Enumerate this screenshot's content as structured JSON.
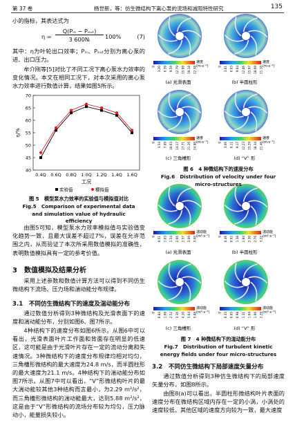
{
  "header": {
    "volume": "第 37 卷",
    "running_title": "杨世新，等：仿生微结构下离心泵的流场和减阻特性研究",
    "page_number": "135"
  },
  "left": {
    "p1": "小的指标，其表达式为",
    "equation": {
      "lhs": "η =",
      "numerator": "Q(Pᵢₙ − Pₒᵤₜ)",
      "denominator": "3 600Nᵢ",
      "suffix": "100%",
      "number": "(7)"
    },
    "p2": "其中：η为叶轮出口效率；Pᵢₙ、Pₒᵤₜ分别为离心泵的进、出口压力。",
    "p3": "牟介刚等[5]对比了不同工况下离心泵水力效率的变化情况。本文在相同工况下，对本次采用的离心泵水力效率进行数值计算，结果如图5所示。",
    "fig5_caption_cn": "图 5　模型泵水力效率的实验值与模拟值对比",
    "fig5_caption_en": "Fig.5　Comparison of experimental data and simulation value of hydraulic efficiency",
    "p4": "由图5可知，模型泵水力效率模拟值与实验值变化趋势一致，且最大误差不超过7%，误差在允许范围之内，从而验证了本次所采用数值模拟的准确性，表明数值模拟具有一定的参考价值。",
    "section3": "3　数值模拟及结果分析",
    "p5": "采用上述参数和数值计算方法可以得到不同仿生微结构下流场、压力场和湍动能分布规律。",
    "section31": "3.1　不同仿生微结构下的速度及湍动能分布",
    "p6": "通过数值分析得到3种微结构及光滑表面下的速度和湍动能分布，分别如图6、图7所示。",
    "p7": "4种结构下的速度分布如图6所示。从图6中可以看出，光滑表面叶片工作面和背面存在明显的低速区，这可能是由于光滑叶片存在一定的流动分离和失速情况。3种微结构下的速度分布规律均相对均匀，三角槽形微结构的最大速度为24.8 m/s，而半圆柱形的最大速度为21.1 m/s。4种结构下的湍动能分布如图7所示。从图7中可以看出，“V”形微结构叶片的最大湍动能较其他3种结构而言最小，为2.29 m²/s²，而三角槽形微结构的湍动能最大，达到5.88 m²/s²，这是由于“V”形微结构的流场分布较为均匀，压力脉动小，能量损失较小。"
  },
  "chart_data": {
    "type": "line",
    "x_label": "工况",
    "y_label": "η/%",
    "categories": [
      "0.4Q",
      "0.6Q",
      "0.8Q",
      "1.0Q",
      "1.2Q",
      "1.4Q",
      "1.6Q"
    ],
    "series": [
      {
        "name": "实验值",
        "color": "#000000",
        "marker": "square",
        "values": [
          45,
          56,
          63,
          65.5,
          64,
          62,
          55
        ]
      },
      {
        "name": "模拟值",
        "color": "#e02020",
        "marker": "circle",
        "values": [
          47,
          57,
          64,
          66.5,
          65,
          63,
          56
        ]
      }
    ],
    "ylim": [
      40,
      70
    ],
    "yticks": [
      40,
      45,
      50,
      55,
      60,
      65,
      70
    ]
  },
  "figure6": {
    "unit": "速度\n(m·s⁻¹)",
    "panels": [
      {
        "label": "(a) 光滑表面",
        "ticks": [
          "0",
          "3.20",
          "6.39",
          "9.59",
          "12.79",
          "15.99",
          "19.18",
          "22.38"
        ]
      },
      {
        "label": "(b) 半圆柱形",
        "ticks": [
          "0",
          "3.01",
          "6.03",
          "9.04",
          "12.06",
          "15.07",
          "18.09",
          "21.10"
        ]
      },
      {
        "label": "(c) 三角槽形",
        "ticks": [
          "0",
          "3.54",
          "7.09",
          "10.63",
          "14.17",
          "17.71",
          "21.26",
          "24.80"
        ]
      },
      {
        "label": "(d) “V” 形",
        "ticks": [
          "0",
          "3.06",
          "6.11",
          "9.17",
          "12.23",
          "15.29",
          "18.34",
          "21.40"
        ]
      }
    ],
    "caption_cn": "图 6　4 种微结构下的速度分布",
    "caption_en": "Fig.6　Distribution of velocity under four micro-structures"
  },
  "figure7": {
    "unit": "湍动能\n(m²·s⁻²)",
    "panels": [
      {
        "label": "(a) 光滑表面",
        "ticks": [
          "0",
          "0.51",
          "1.03",
          "1.54",
          "2.06",
          "2.57",
          "3.09",
          "3.60"
        ]
      },
      {
        "label": "(b) 半圆柱形",
        "ticks": [
          "0",
          "0.46",
          "0.92",
          "1.38",
          "1.84",
          "2.30",
          "2.76",
          "3.22"
        ]
      },
      {
        "label": "(c) 三角槽形",
        "ticks": [
          "0",
          "0.84",
          "1.68",
          "2.52",
          "3.36",
          "4.20",
          "5.04",
          "5.88"
        ]
      },
      {
        "label": "(d) “V” 形",
        "ticks": [
          "0",
          "0.33",
          "0.65",
          "0.98",
          "1.31",
          "1.64",
          "1.96",
          "2.29"
        ]
      }
    ],
    "caption_cn": "图 7　4 种微结构下的湍动能分布",
    "caption_en": "Fig.7　Distribution of turbulent kinetic energy fields under four micro-structures"
  },
  "right": {
    "section32": "3.2　不同仿生微结构下局部速度矢量分布",
    "p1": "通过数值分析得到3种仿生微结构下的局部速度矢量分布，如图8所示。",
    "p2": "由图8(a)可以看出，半圆柱形微结构叶片表面的速度分布在微结构区域内存在一定的小涡，小涡处的速度较低，其他区域的速度方向较为一致，最大速度"
  }
}
